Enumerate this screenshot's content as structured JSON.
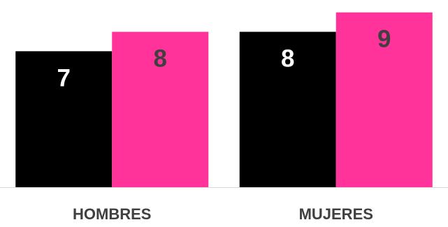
{
  "chart_data": {
    "type": "bar",
    "categories": [
      "HOMBRES",
      "MUJERES"
    ],
    "series": [
      {
        "values": [
          7,
          8
        ],
        "color": "#000000",
        "label_color": "#ffffff"
      },
      {
        "values": [
          8,
          9
        ],
        "color": "#ff3399",
        "label_color": "#404040"
      }
    ],
    "ylim": [
      0,
      9.35
    ],
    "grid": false,
    "legend": "none",
    "data_labels": true,
    "axis_line_color": "#d9d9d9"
  }
}
